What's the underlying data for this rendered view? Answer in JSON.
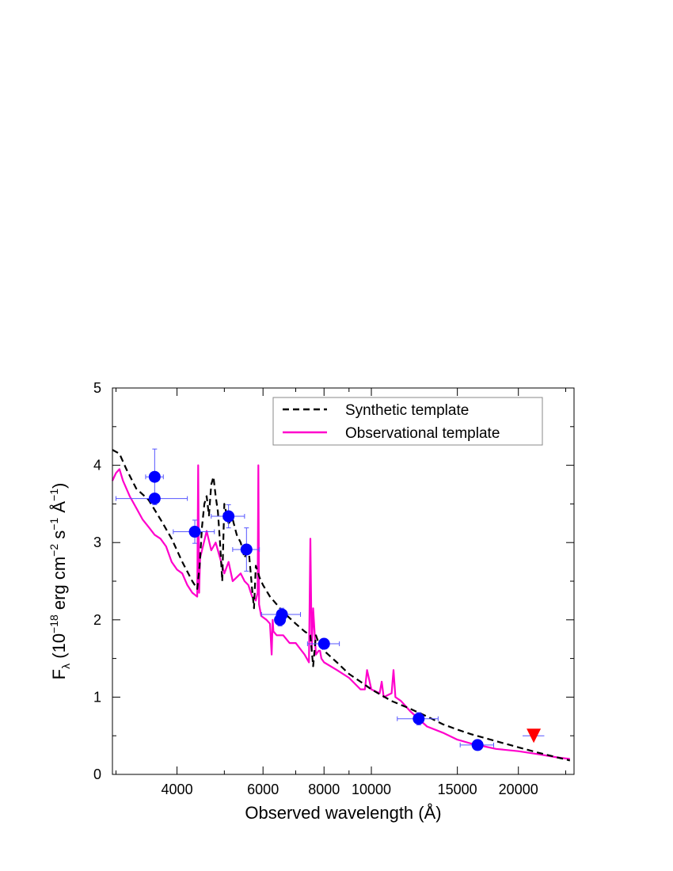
{
  "chart_data": {
    "type": "line",
    "xlabel": "Observed wavelength (Å)",
    "ylabel": "F_λ (10^-18 erg cm^-2 s^-1 Å^-1)",
    "ylabel_parts": {
      "F": "F",
      "lambda": "λ",
      "open": " (10",
      "exp1": "−18",
      "unit1": " erg cm",
      "exp2": "−2",
      "unit2": " s",
      "exp3": "−1",
      "unit3": " Å",
      "exp4": "−1",
      "close": ")"
    },
    "x_scale": "log",
    "xlim": [
      2950,
      26000
    ],
    "ylim": [
      0,
      5
    ],
    "x_ticks": [
      4000,
      6000,
      8000,
      10000,
      15000,
      20000
    ],
    "x_tick_labels": [
      "4000",
      "6000",
      "8000",
      "10000",
      "15000",
      "20000"
    ],
    "y_ticks": [
      0,
      1,
      2,
      3,
      4,
      5
    ],
    "y_tick_labels": [
      "0",
      "1",
      "2",
      "3",
      "4",
      "5"
    ],
    "legend_position": "top-right",
    "colors": {
      "synthetic": "#000000",
      "observational": "#ff00cc",
      "points": "#0000ff",
      "errorbars": "#5555ff",
      "upper_limit": "#ff0000"
    },
    "series": [
      {
        "name": "Synthetic template",
        "style": "dashed",
        "x": [
          2950,
          3050,
          3150,
          3300,
          3500,
          3700,
          3900,
          4100,
          4300,
          4400,
          4450,
          4500,
          4550,
          4600,
          4650,
          4700,
          4750,
          4800,
          4850,
          4900,
          4950,
          5000,
          5100,
          5200,
          5300,
          5400,
          5500,
          5600,
          5700,
          5750,
          5800,
          5900,
          6000,
          6200,
          6400,
          6600,
          7000,
          7300,
          7500,
          7600,
          7700,
          7800,
          8000,
          8500,
          9000,
          9500,
          10000,
          11000,
          12000,
          13000,
          14000,
          15000,
          16000,
          18000,
          20000,
          22000,
          24000,
          25500
        ],
        "y": [
          4.2,
          4.15,
          3.95,
          3.7,
          3.55,
          3.3,
          3.05,
          2.75,
          2.5,
          2.4,
          2.7,
          3.2,
          3.5,
          3.6,
          3.35,
          3.75,
          3.85,
          3.6,
          3.4,
          3.0,
          2.5,
          3.5,
          3.25,
          3.3,
          3.1,
          3.0,
          2.8,
          2.95,
          2.4,
          2.15,
          2.7,
          2.55,
          2.45,
          2.3,
          2.2,
          2.1,
          1.95,
          1.85,
          1.8,
          1.4,
          1.8,
          1.7,
          1.6,
          1.45,
          1.3,
          1.2,
          1.1,
          0.95,
          0.85,
          0.75,
          0.65,
          0.58,
          0.52,
          0.43,
          0.35,
          0.28,
          0.22,
          0.18
        ]
      },
      {
        "name": "Observational template",
        "style": "solid",
        "x": [
          2950,
          3000,
          3050,
          3100,
          3200,
          3300,
          3400,
          3500,
          3600,
          3700,
          3800,
          3900,
          4000,
          4100,
          4200,
          4300,
          4400,
          4420,
          4440,
          4460,
          4500,
          4600,
          4700,
          4800,
          4900,
          5000,
          5100,
          5200,
          5300,
          5400,
          5500,
          5600,
          5700,
          5800,
          5850,
          5870,
          5890,
          5950,
          6100,
          6200,
          6250,
          6280,
          6300,
          6400,
          6600,
          6800,
          7000,
          7300,
          7450,
          7500,
          7550,
          7600,
          7700,
          7800,
          7850,
          7900,
          8000,
          8500,
          9000,
          9500,
          9700,
          9800,
          10000,
          10400,
          10500,
          10600,
          11000,
          11100,
          11200,
          11500,
          12000,
          13000,
          14000,
          15000,
          16000,
          18000,
          20000,
          22000,
          24000,
          25500
        ],
        "y": [
          3.8,
          3.9,
          3.95,
          3.8,
          3.6,
          3.45,
          3.3,
          3.2,
          3.1,
          3.05,
          2.95,
          2.75,
          2.65,
          2.6,
          2.45,
          2.35,
          2.3,
          4.0,
          2.35,
          2.8,
          2.9,
          3.15,
          2.9,
          3.0,
          2.8,
          2.6,
          2.75,
          2.5,
          2.55,
          2.6,
          2.5,
          2.45,
          2.3,
          2.25,
          2.35,
          4.0,
          2.2,
          2.05,
          2.0,
          1.95,
          1.55,
          2.0,
          1.85,
          1.8,
          1.8,
          1.7,
          1.7,
          1.55,
          1.45,
          3.05,
          1.6,
          2.15,
          1.55,
          1.6,
          1.6,
          1.5,
          1.45,
          1.35,
          1.25,
          1.1,
          1.1,
          1.35,
          1.1,
          1.05,
          1.2,
          1.0,
          1.05,
          1.35,
          1.0,
          0.95,
          0.82,
          0.62,
          0.54,
          0.45,
          0.4,
          0.33,
          0.3,
          0.26,
          0.22,
          0.2
        ]
      }
    ],
    "photometry": [
      {
        "x": 3600,
        "y": 3.85,
        "xerr": 150,
        "yerr": 0.36
      },
      {
        "x": 3600,
        "y": 3.57,
        "xerr": 600,
        "yerr": 0.05
      },
      {
        "x": 4350,
        "y": 3.14,
        "xerr": 420,
        "yerr": 0.15
      },
      {
        "x": 5100,
        "y": 3.34,
        "xerr": 400,
        "yerr": 0.15
      },
      {
        "x": 5550,
        "y": 2.91,
        "xerr": 350,
        "yerr": 0.28
      },
      {
        "x": 6560,
        "y": 2.07,
        "xerr": 600,
        "yerr": 0.08
      },
      {
        "x": 6500,
        "y": 2.0,
        "xerr": 150,
        "yerr": 0.08
      },
      {
        "x": 8000,
        "y": 1.69,
        "xerr": 600,
        "yerr": 0.05
      },
      {
        "x": 12500,
        "y": 0.72,
        "xerr": 1200,
        "yerr": 0.08
      },
      {
        "x": 16500,
        "y": 0.38,
        "xerr": 1300,
        "yerr": 0.06
      }
    ],
    "upper_limits": [
      {
        "x": 21500,
        "y": 0.5,
        "xerr": 1100
      }
    ]
  }
}
